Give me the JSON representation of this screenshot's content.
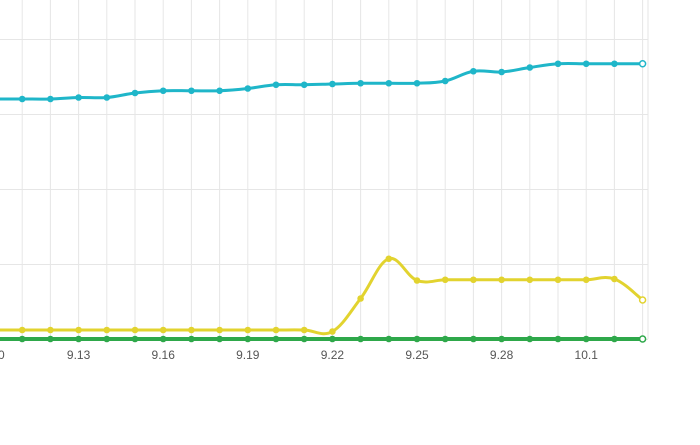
{
  "chart_data": {
    "type": "line",
    "x": [
      "9.10",
      "9.11",
      "9.12",
      "9.13",
      "9.14",
      "9.15",
      "9.16",
      "9.17",
      "9.18",
      "9.19",
      "9.20",
      "9.21",
      "9.22",
      "9.23",
      "9.24",
      "9.25",
      "9.26",
      "9.27",
      "9.28",
      "9.29",
      "9.30",
      "10.1",
      "10.2",
      "10.3"
    ],
    "xtick_labels": [
      "0",
      "9.13",
      "9.16",
      "9.19",
      "9.22",
      "9.25",
      "9.28",
      "10.1"
    ],
    "grid": true,
    "ylim": [
      0,
      5
    ],
    "series": [
      {
        "color": "#1fb6c9",
        "smooth": true,
        "values": [
          3.2,
          3.2,
          3.2,
          3.22,
          3.22,
          3.28,
          3.31,
          3.31,
          3.31,
          3.34,
          3.39,
          3.39,
          3.4,
          3.41,
          3.41,
          3.41,
          3.44,
          3.57,
          3.56,
          3.62,
          3.67,
          3.67,
          3.67,
          3.67
        ]
      },
      {
        "color": "#e2d32f",
        "smooth": true,
        "values": [
          0.12,
          0.12,
          0.12,
          0.12,
          0.12,
          0.12,
          0.12,
          0.12,
          0.12,
          0.12,
          0.12,
          0.12,
          0.1,
          0.54,
          1.07,
          0.78,
          0.79,
          0.79,
          0.79,
          0.79,
          0.79,
          0.79,
          0.8,
          0.52
        ]
      },
      {
        "color": "#2ea84a",
        "smooth": false,
        "values": [
          0,
          0,
          0,
          0,
          0,
          0,
          0,
          0,
          0,
          0,
          0,
          0,
          0,
          0,
          0,
          0,
          0,
          0,
          0,
          0,
          0,
          0,
          0,
          0
        ]
      }
    ]
  }
}
